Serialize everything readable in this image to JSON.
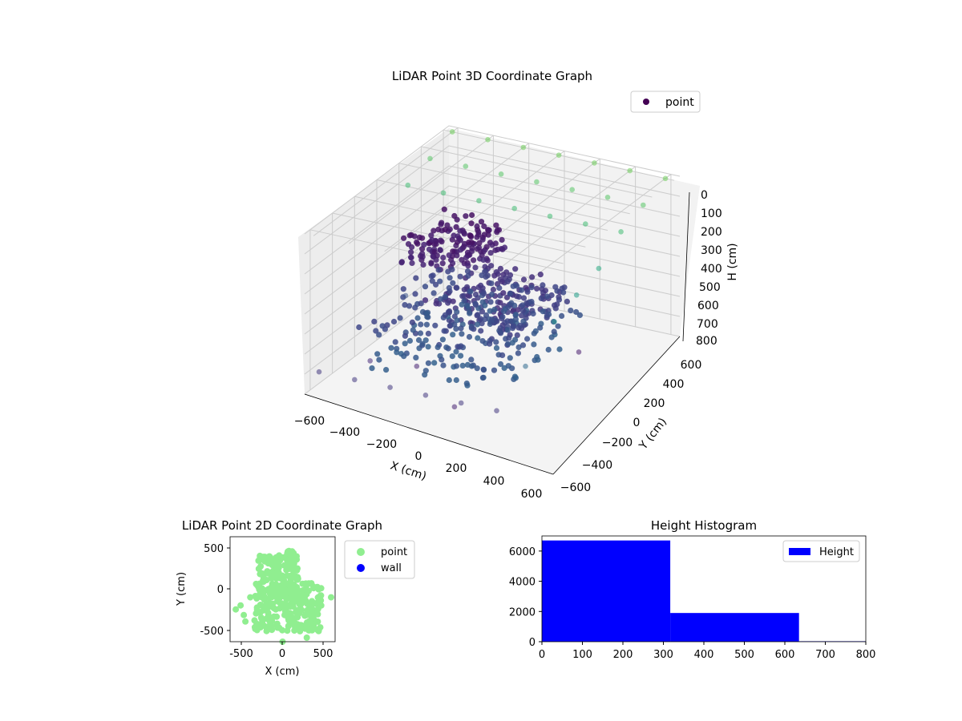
{
  "chart_data": [
    {
      "type": "scatter",
      "projection": "3d",
      "title": "LiDAR Point 3D Coordinate Graph",
      "xlabel": "X (cm)",
      "ylabel": "Y (cm)",
      "zlabel": "H (cm)",
      "xlim": [
        -650,
        650
      ],
      "ylim": [
        -650,
        650
      ],
      "zlim": [
        800,
        0
      ],
      "xticks": [
        "−600",
        "−400",
        "−200",
        "0",
        "200",
        "400",
        "600"
      ],
      "yticks": [
        "−600",
        "−400",
        "−200",
        "0",
        "200",
        "400",
        "600"
      ],
      "zticks": [
        "0",
        "100",
        "200",
        "300",
        "400",
        "500",
        "600",
        "700",
        "800"
      ],
      "grid": true,
      "colormap": "viridis",
      "legend": {
        "placement": "upper-right",
        "entries": [
          {
            "label": "point",
            "color": "#440154"
          }
        ]
      },
      "series": [
        {
          "name": "point",
          "clusters": [
            {
              "x": [
                -350,
                50
              ],
              "y": [
                -300,
                100
              ],
              "h": [
                100,
                250
              ],
              "count": 900
            },
            {
              "x": [
                -100,
                400
              ],
              "y": [
                -450,
                100
              ],
              "h": [
                300,
                450
              ],
              "count": 900
            },
            {
              "x": [
                -450,
                350
              ],
              "y": [
                -500,
                300
              ],
              "h": [
                450,
                700
              ],
              "count": 1600
            }
          ],
          "outliers": [
            {
              "x": -600,
              "y": 600,
              "h": 0
            },
            {
              "x": -400,
              "y": 600,
              "h": 0
            },
            {
              "x": -200,
              "y": 600,
              "h": 0
            },
            {
              "x": 0,
              "y": 600,
              "h": 0
            },
            {
              "x": 200,
              "y": 600,
              "h": 0
            },
            {
              "x": 400,
              "y": 600,
              "h": 0
            },
            {
              "x": 600,
              "y": 600,
              "h": 0
            },
            {
              "x": -600,
              "y": 400,
              "h": 50
            },
            {
              "x": -400,
              "y": 400,
              "h": 50
            },
            {
              "x": -200,
              "y": 400,
              "h": 50
            },
            {
              "x": 0,
              "y": 400,
              "h": 50
            },
            {
              "x": 200,
              "y": 400,
              "h": 50
            },
            {
              "x": 400,
              "y": 400,
              "h": 50
            },
            {
              "x": 600,
              "y": 400,
              "h": 50
            },
            {
              "x": -600,
              "y": 200,
              "h": 100
            },
            {
              "x": -400,
              "y": 200,
              "h": 100
            },
            {
              "x": -200,
              "y": 200,
              "h": 100
            },
            {
              "x": 0,
              "y": 200,
              "h": 100
            },
            {
              "x": 200,
              "y": 200,
              "h": 100
            },
            {
              "x": 400,
              "y": 200,
              "h": 100
            },
            {
              "x": 600,
              "y": 200,
              "h": 100
            },
            {
              "x": 600,
              "y": 0,
              "h": 200
            },
            {
              "x": 600,
              "y": -200,
              "h": 250
            },
            {
              "x": 600,
              "y": -400,
              "h": 300
            },
            {
              "x": -600,
              "y": -600,
              "h": 700
            },
            {
              "x": -400,
              "y": -600,
              "h": 700
            },
            {
              "x": -200,
              "y": -600,
              "h": 700
            },
            {
              "x": 0,
              "y": -600,
              "h": 700
            },
            {
              "x": 200,
              "y": -600,
              "h": 700
            },
            {
              "x": 400,
              "y": -600,
              "h": 700
            },
            {
              "x": -500,
              "y": -300,
              "h": 750
            },
            {
              "x": -300,
              "y": -200,
              "h": 780
            },
            {
              "x": 100,
              "y": -500,
              "h": 780
            },
            {
              "x": 500,
              "y": -500,
              "h": 500
            },
            {
              "x": -550,
              "y": 100,
              "h": 600
            },
            {
              "x": 300,
              "y": 300,
              "h": 800
            }
          ]
        }
      ]
    },
    {
      "type": "scatter",
      "title": "LiDAR Point 2D Coordinate Graph",
      "xlabel": "X (cm)",
      "ylabel": "Y (cm)",
      "xlim": [
        -650,
        650
      ],
      "ylim": [
        -650,
        650
      ],
      "xticks": [
        -500,
        0,
        500
      ],
      "yticks": [
        500,
        0,
        -500
      ],
      "legend": {
        "placement": "outside-right",
        "entries": [
          {
            "label": "point",
            "color": "#90ee90"
          },
          {
            "label": "wall",
            "color": "#0000ff"
          }
        ]
      },
      "series": [
        {
          "name": "point",
          "color": "#90ee90",
          "clusters": [
            {
              "x": [
                -350,
                480
              ],
              "y": [
                -520,
                80
              ],
              "count": 700
            },
            {
              "x": [
                -300,
                200
              ],
              "y": [
                -150,
                420
              ],
              "count": 450
            },
            {
              "x": [
                50,
                150
              ],
              "y": [
                300,
                480
              ],
              "count": 120
            }
          ],
          "outliers": [
            {
              "x": -580,
              "y": -250
            },
            {
              "x": -520,
              "y": -200
            },
            {
              "x": -480,
              "y": -320
            },
            {
              "x": -460,
              "y": -400
            },
            {
              "x": 600,
              "y": -100
            },
            {
              "x": 300,
              "y": -600
            },
            {
              "x": 0,
              "y": -650
            },
            {
              "x": -400,
              "y": -100
            },
            {
              "x": 450,
              "y": -500
            }
          ]
        },
        {
          "name": "wall",
          "color": "#0000ff",
          "points": []
        }
      ]
    },
    {
      "type": "bar",
      "subtype": "histogram",
      "title": "Height Histogram",
      "xlim": [
        0,
        800
      ],
      "ylim": [
        0,
        7000
      ],
      "xticks": [
        0,
        100,
        200,
        300,
        400,
        500,
        600,
        700,
        800
      ],
      "yticks": [
        0,
        2000,
        4000,
        6000
      ],
      "color": "#0000ff",
      "bins": [
        {
          "start": 0,
          "end": 317,
          "value": 6700
        },
        {
          "start": 317,
          "end": 635,
          "value": 1900
        },
        {
          "start": 635,
          "end": 800,
          "value": 30
        }
      ],
      "legend": {
        "placement": "upper-right",
        "entries": [
          {
            "label": "Height",
            "color": "#0000ff"
          }
        ]
      }
    }
  ]
}
